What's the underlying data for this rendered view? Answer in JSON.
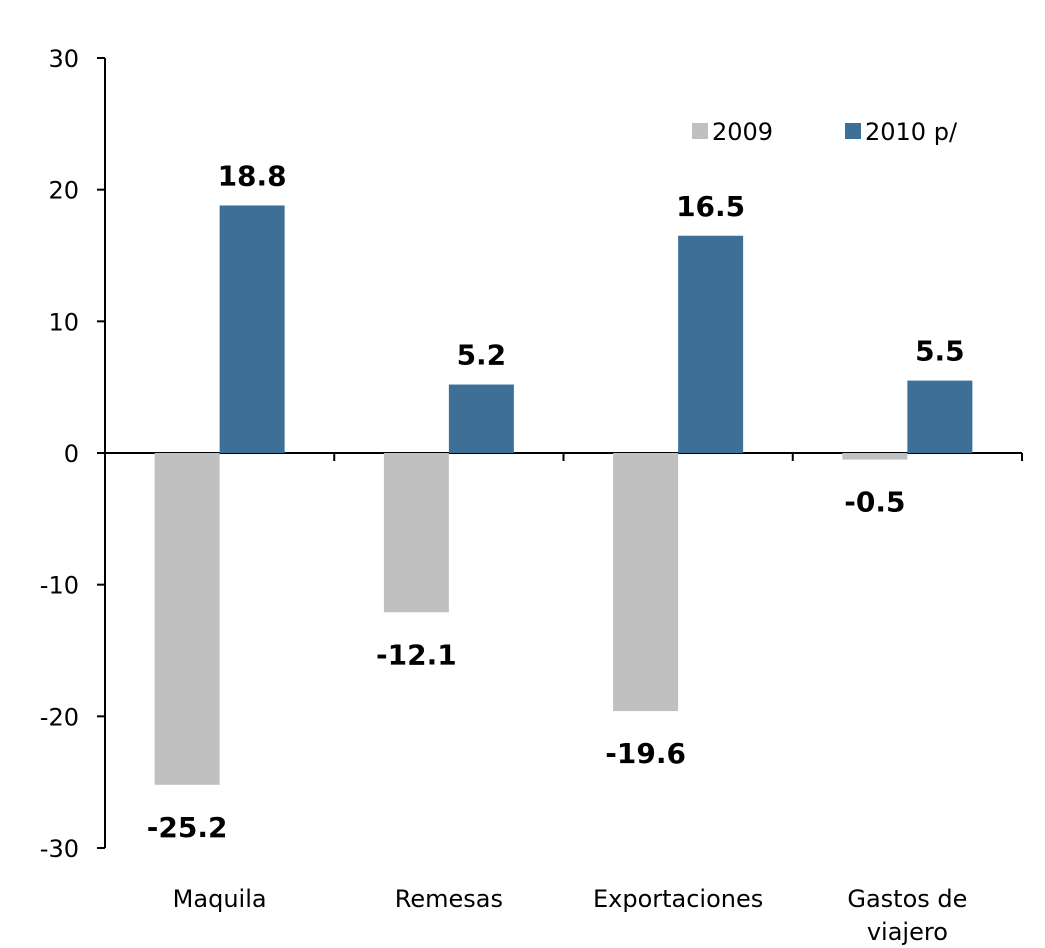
{
  "chart_data": {
    "type": "bar",
    "categories": [
      [
        "Maquila"
      ],
      [
        "Remesas"
      ],
      [
        "Exportaciones"
      ],
      [
        "Gastos de",
        "viajero"
      ]
    ],
    "series": [
      {
        "name": "2009",
        "values": [
          -25.2,
          -12.1,
          -19.6,
          -0.5
        ],
        "color": "#c0c0c0"
      },
      {
        "name": "2010 p/",
        "values": [
          18.8,
          5.2,
          16.5,
          5.5
        ],
        "color": "#3e6f97"
      }
    ],
    "data_labels": [
      [
        "-25.2",
        "-12.1",
        "-19.6",
        "-0.5"
      ],
      [
        "18.8",
        "5.2",
        "16.5",
        "5.5"
      ]
    ],
    "ylim": [
      -30,
      30
    ],
    "yticks": [
      "30",
      "20",
      "10",
      "0",
      "-10",
      "-20",
      "-30"
    ],
    "ytick_values": [
      30,
      20,
      10,
      0,
      -10,
      -20,
      -30
    ],
    "legend_position": "top-right",
    "grid": false
  }
}
